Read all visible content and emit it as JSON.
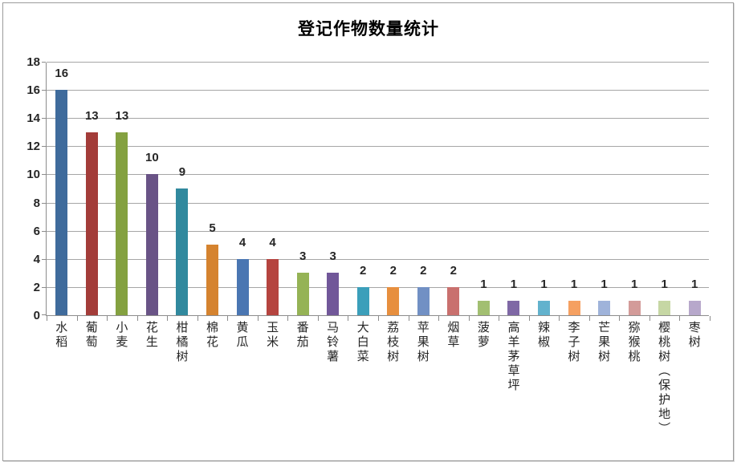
{
  "chart_data": {
    "type": "bar",
    "title": "登记作物数量统计",
    "categories": [
      "水稻",
      "葡萄",
      "小麦",
      "花生",
      "柑橘树",
      "棉花",
      "黄瓜",
      "玉米",
      "番茄",
      "马铃薯",
      "大白菜",
      "荔枝树",
      "苹果树",
      "烟草",
      "菠萝",
      "高羊茅草坪",
      "辣椒",
      "李子树",
      "芒果树",
      "猕猴桃",
      "樱桃树（保护地）",
      "枣树"
    ],
    "values": [
      16,
      13,
      13,
      10,
      9,
      5,
      4,
      4,
      3,
      3,
      2,
      2,
      2,
      2,
      1,
      1,
      1,
      1,
      1,
      1,
      1,
      1
    ],
    "bar_colors": [
      "#3F6B9C",
      "#A33C39",
      "#84A140",
      "#695386",
      "#31899E",
      "#D5832F",
      "#4A76B2",
      "#B5443F",
      "#95B355",
      "#715799",
      "#3B9FBA",
      "#E78F3E",
      "#7190C4",
      "#C9706E",
      "#A2BF71",
      "#7F68A5",
      "#62B2CD",
      "#F5A061",
      "#9FB3DA",
      "#D39B99",
      "#C6D7A4",
      "#B7A8CB"
    ],
    "xlabel": "",
    "ylabel": "",
    "ylim": [
      0,
      18
    ],
    "yticks": [
      0,
      2,
      4,
      6,
      8,
      10,
      12,
      14,
      16,
      18
    ],
    "grid": true,
    "legend": "none",
    "value_labels_shown": true,
    "colors": {
      "axis": "#8C8C8C",
      "gridline": "#A6A6A6",
      "text": "#262626",
      "title": "#000000",
      "frame_border": "#9B9B9B",
      "background": "#FFFFFF"
    }
  }
}
